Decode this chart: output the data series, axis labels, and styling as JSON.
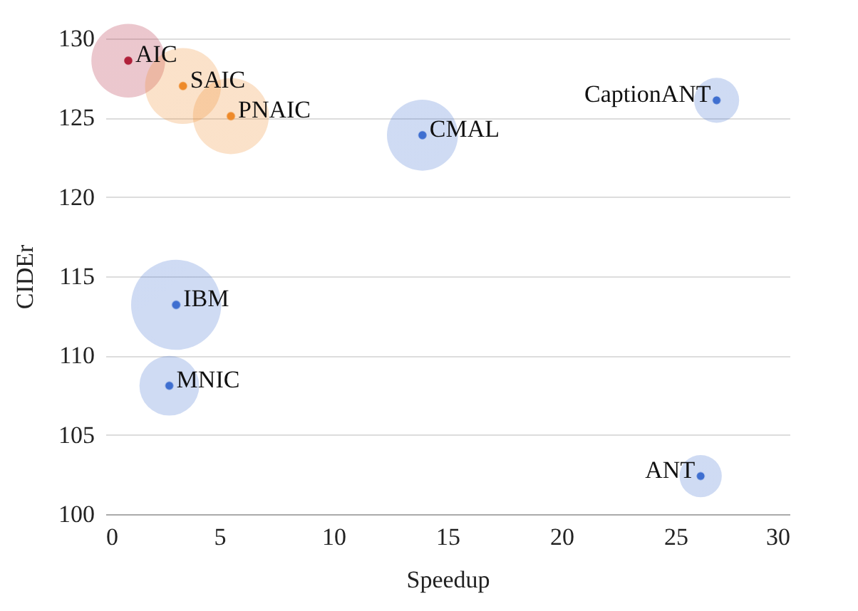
{
  "chart_data": {
    "type": "bubble",
    "xlabel": "Speedup",
    "ylabel": "CIDEr",
    "x": [
      1.0,
      3.4,
      5.5,
      13.9,
      3.1,
      2.8,
      26.8,
      26.1
    ],
    "values": [
      128.6,
      127.0,
      125.1,
      123.9,
      113.2,
      108.1,
      126.1,
      102.4
    ],
    "sizes": [
      0.67,
      0.71,
      0.71,
      0.62,
      1,
      0.44,
      0.25,
      0.22
    ],
    "colors": [
      "#b0203a",
      "#ee8a2a",
      "#ee8a2a",
      "#3f6fd0",
      "#3f6fd0",
      "#3f6fd0",
      "#3f6fd0",
      "#3f6fd0"
    ],
    "annotations": [
      {
        "text": "AIC",
        "x": 1.0,
        "y": 128.6
      },
      {
        "text": "SAIC",
        "x": 3.4,
        "y": 127.0
      },
      {
        "text": "PNAIC",
        "x": 5.5,
        "y": 125.1
      },
      {
        "text": "CMAL",
        "x": 13.9,
        "y": 123.9
      },
      {
        "text": "IBM",
        "x": 3.1,
        "y": 113.2
      },
      {
        "text": "MNIC",
        "x": 2.8,
        "y": 108.1
      },
      {
        "text": "CaptionANT",
        "x": 26.8,
        "y": 126.1
      },
      {
        "text": "ANT",
        "x": 26.1,
        "y": 102.4
      }
    ],
    "xlim": [
      0,
      30
    ],
    "xticks": [
      0,
      5,
      10,
      15,
      20,
      25,
      30
    ],
    "ylim": [
      100,
      130
    ],
    "yticks": [
      100,
      105,
      110,
      115,
      120,
      125,
      130
    ],
    "grid": "y",
    "marker": "circle"
  }
}
